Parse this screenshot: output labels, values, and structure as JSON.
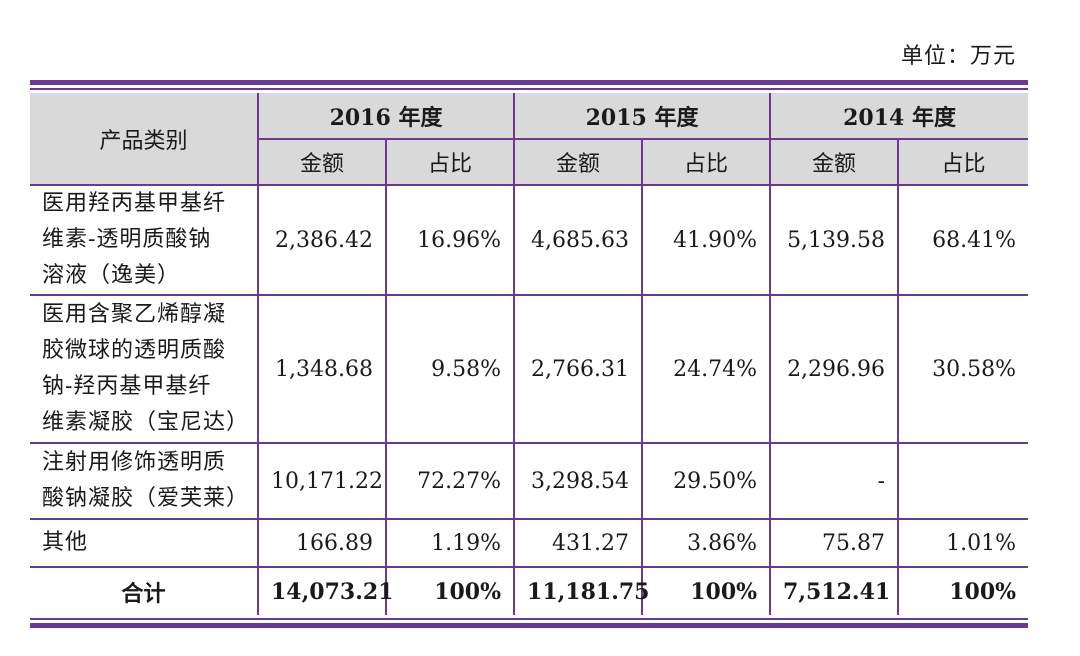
{
  "unit_label": "单位：万元",
  "header": {
    "category": "产品类别",
    "years": [
      "2016 年度",
      "2015 年度",
      "2014 年度"
    ],
    "amount": "金额",
    "ratio": "占比"
  },
  "rows": [
    {
      "category_lines": [
        "医用羟丙基甲基纤",
        "维素-透明质酸钠",
        "溶液（逸美）"
      ],
      "values": [
        "2,386.42",
        "16.96%",
        "4,685.63",
        "41.90%",
        "5,139.58",
        "68.41%"
      ]
    },
    {
      "category_lines": [
        "医用含聚乙烯醇凝",
        "胶微球的透明质酸",
        "钠-羟丙基甲基纤",
        "维素凝胶（宝尼达）"
      ],
      "values": [
        "1,348.68",
        "9.58%",
        "2,766.31",
        "24.74%",
        "2,296.96",
        "30.58%"
      ]
    },
    {
      "category_lines": [
        "注射用修饰透明质",
        "酸钠凝胶（爱芙莱）"
      ],
      "values": [
        "10,171.22",
        "72.27%",
        "3,298.54",
        "29.50%",
        "-",
        ""
      ]
    },
    {
      "category_lines": [
        "其他"
      ],
      "values": [
        "166.89",
        "1.19%",
        "431.27",
        "3.86%",
        "75.87",
        "1.01%"
      ]
    }
  ],
  "total": {
    "label": "合计",
    "values": [
      "14,073.21",
      "100%",
      "11,181.75",
      "100%",
      "7,512.41",
      "100%"
    ]
  }
}
